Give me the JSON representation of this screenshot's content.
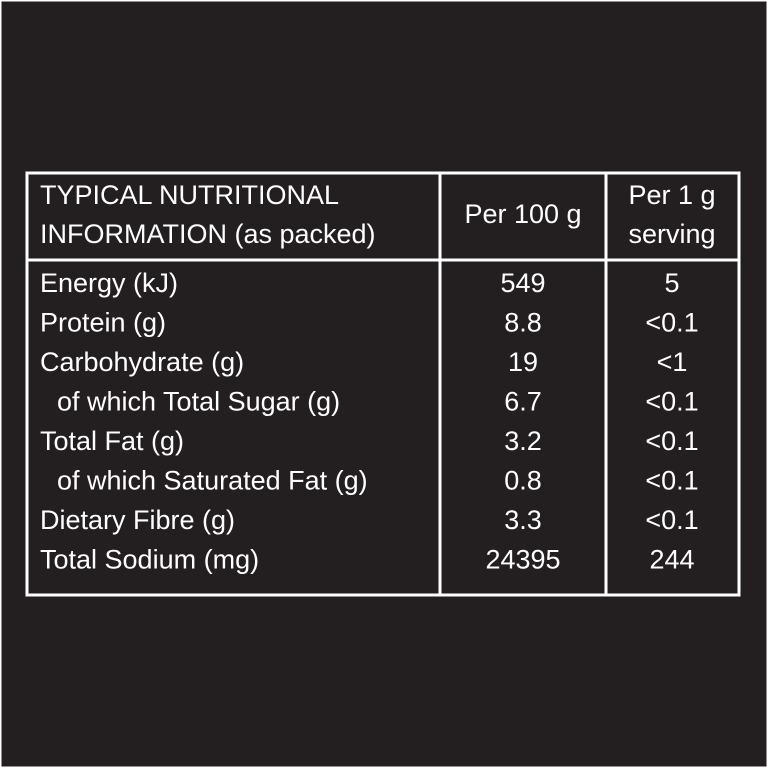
{
  "table": {
    "header": {
      "title_lines": [
        "TYPICAL NUTRITIONAL",
        "INFORMATION (as packed)"
      ],
      "per_100": "Per 100 g",
      "per_serving_lines": [
        "Per 1 g",
        "serving"
      ]
    },
    "rows": [
      {
        "name": "Energy (kJ)",
        "per_100": 549,
        "per_serving": 5
      },
      {
        "name": "Protein (g)",
        "per_100": 8.8,
        "per_serving": "<0.1"
      },
      {
        "name": "Carbohydrate (g)",
        "per_100": 19,
        "per_serving": "<1",
        "sub_rows": [
          {
            "name": "of which Total Sugar (g)",
            "per_100": 6.7,
            "per_serving": "<0.1"
          }
        ]
      },
      {
        "name": "Total Fat (g)",
        "per_100": 3.2,
        "per_serving": "<0.1",
        "sub_rows": [
          {
            "name": "of which Saturated Fat (g)",
            "per_100": 0.8,
            "per_serving": "<0.1"
          }
        ]
      },
      {
        "name": "Dietary Fibre (g)",
        "per_100": 3.3,
        "per_serving": "<0.1"
      },
      {
        "name": "Total Sodium (mg)",
        "per_100": 24395,
        "per_serving": 244
      }
    ]
  }
}
